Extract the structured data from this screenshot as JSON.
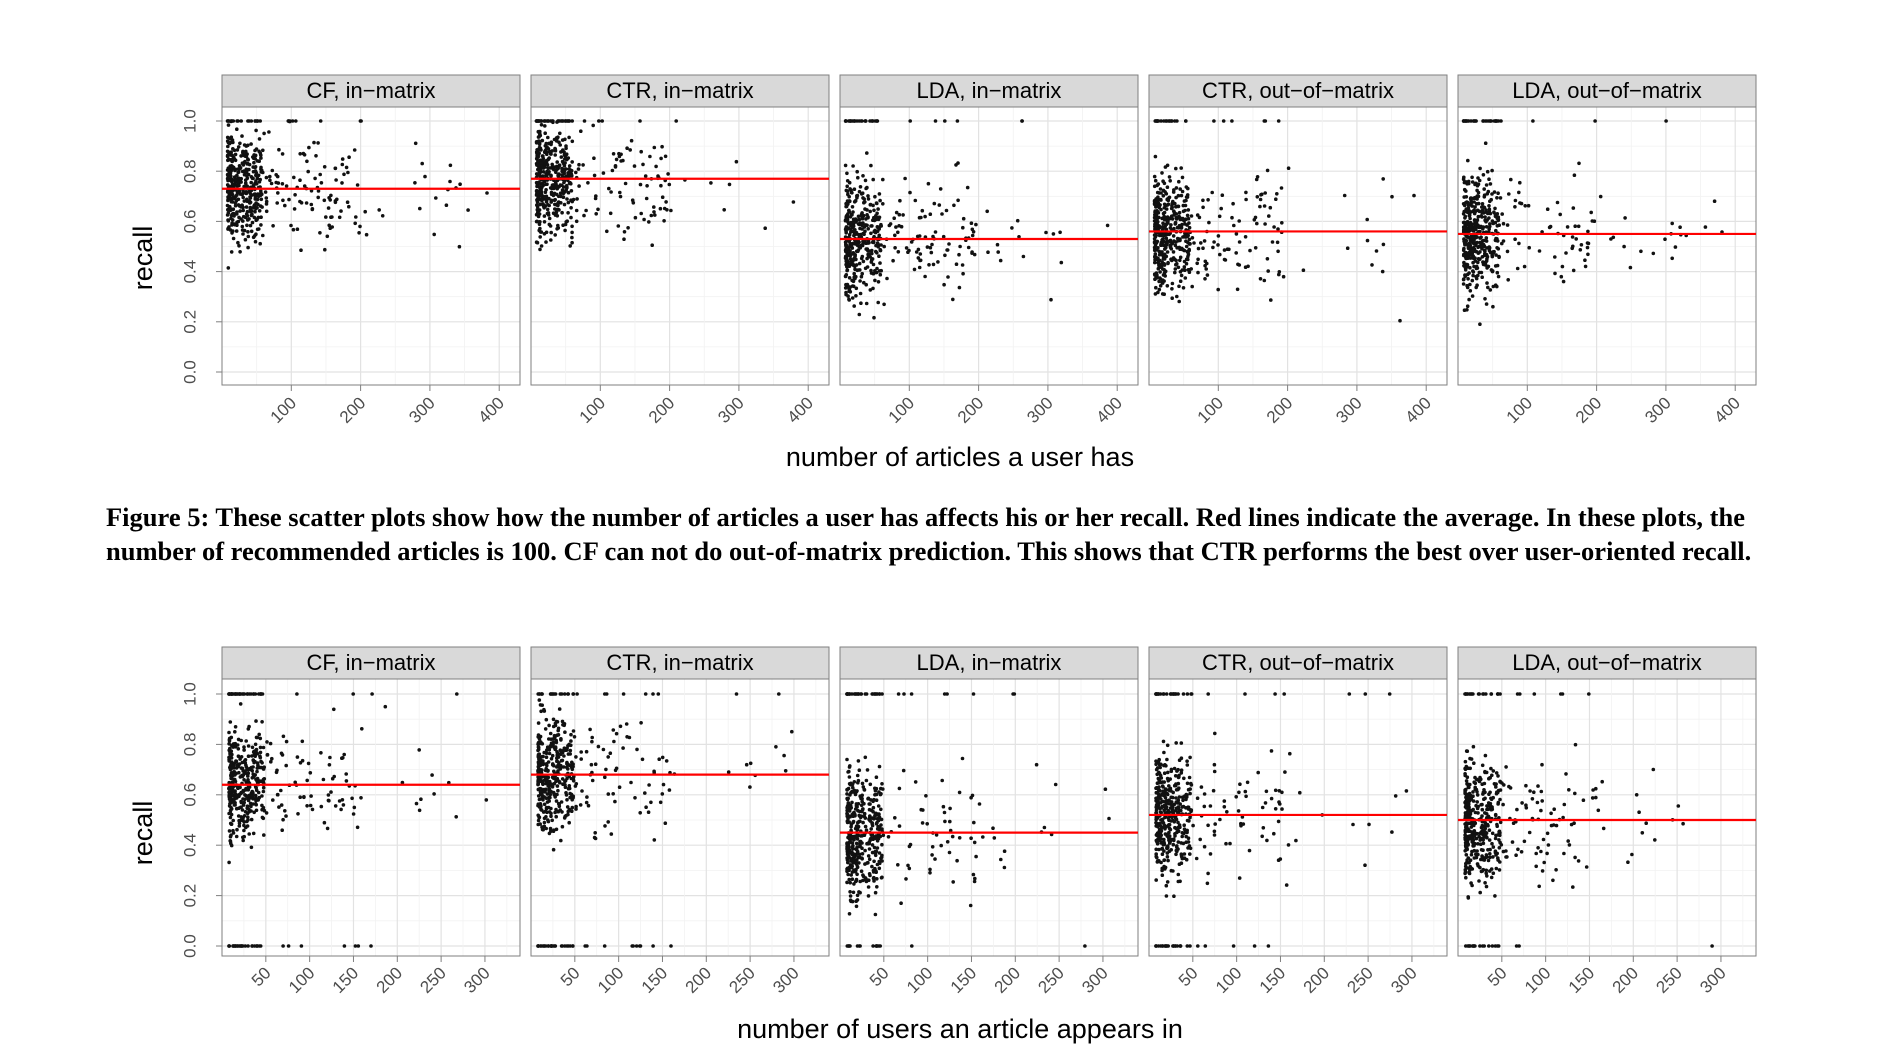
{
  "caption": "Figure 5: These scatter plots show how the number of articles a user has affects his or her recall. Red lines indicate the average. In these plots, the number of recommended articles is 100. CF can not do out-of-matrix prediction. This shows that CTR performs the best over user-oriented recall.",
  "chart_data": [
    {
      "type": "scatter",
      "xlabel": "number of articles a user has",
      "ylabel": "recall",
      "ylim": [
        0,
        1
      ],
      "y_ticks": [
        "0.0",
        "0.2",
        "0.4",
        "0.6",
        "0.8",
        "1.0"
      ],
      "x_ticks": [
        100,
        200,
        300,
        400
      ],
      "xlim": [
        0,
        430
      ],
      "grid": true,
      "panels": [
        {
          "title": "CF, in−matrix",
          "average": 0.73
        },
        {
          "title": "CTR, in−matrix",
          "average": 0.77
        },
        {
          "title": "LDA, in−matrix",
          "average": 0.53
        },
        {
          "title": "CTR, out−of−matrix",
          "average": 0.56
        },
        {
          "title": "LDA, out−of−matrix",
          "average": 0.55
        }
      ]
    },
    {
      "type": "scatter",
      "xlabel": "number of users an article appears in",
      "ylabel": "recall",
      "ylim": [
        0,
        1
      ],
      "y_ticks": [
        "0.0",
        "0.2",
        "0.4",
        "0.6",
        "0.8",
        "1.0"
      ],
      "x_ticks": [
        50,
        100,
        150,
        200,
        250,
        300
      ],
      "xlim": [
        0,
        340
      ],
      "grid": true,
      "panels": [
        {
          "title": "CF, in−matrix",
          "average": 0.64
        },
        {
          "title": "CTR, in−matrix",
          "average": 0.68
        },
        {
          "title": "LDA, in−matrix",
          "average": 0.45
        },
        {
          "title": "CTR, out−of−matrix",
          "average": 0.52
        },
        {
          "title": "LDA, out−of−matrix",
          "average": 0.5
        }
      ]
    }
  ]
}
